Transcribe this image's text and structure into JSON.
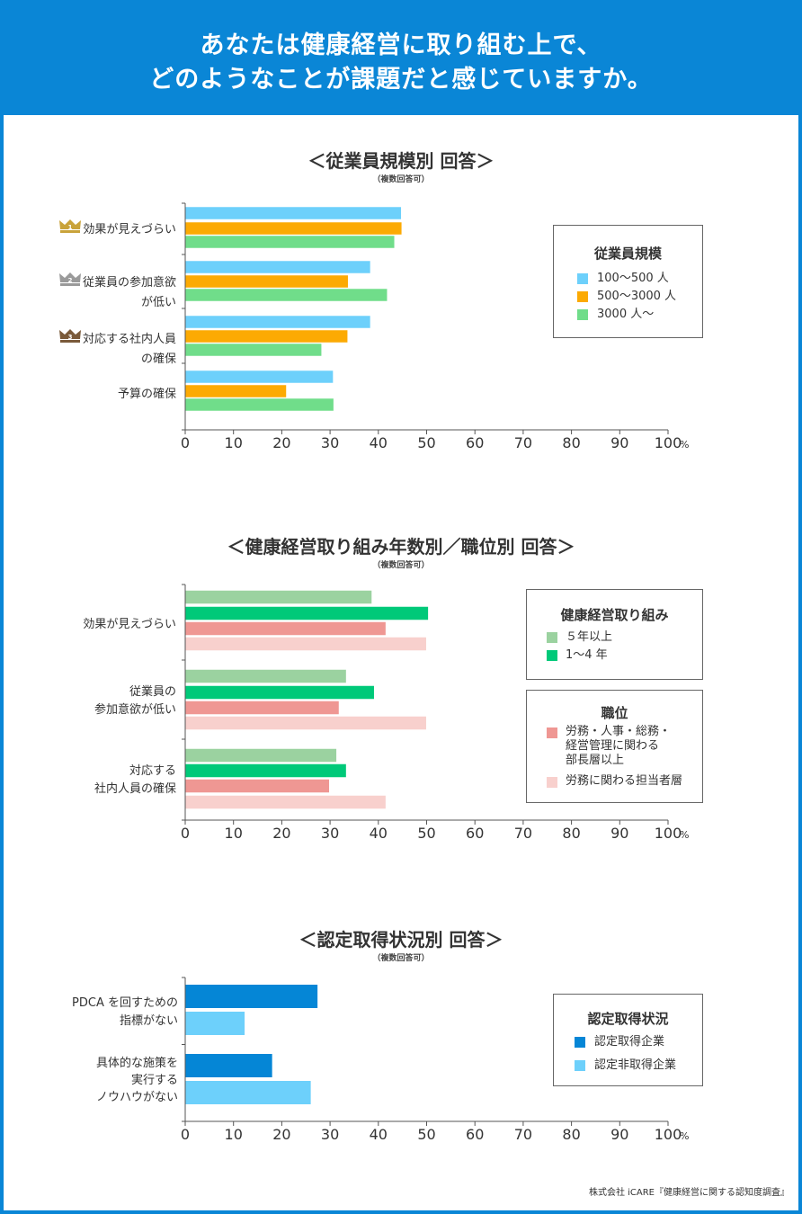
{
  "header": {
    "line1": "あなたは健康経営に取り組む上で、",
    "line2": "どのようなことが課題だと感じていますか。"
  },
  "credit": "株式会社 iCARE『健康経営に関する認知度調査』",
  "chart_data": [
    {
      "type": "bar",
      "orientation": "horizontal",
      "title": "＜従業員規模別 回答＞",
      "subtitle": "（複数回答可）",
      "unit": "%",
      "xlim": [
        0,
        100
      ],
      "xticks": [
        "0",
        "10",
        "20",
        "30",
        "40",
        "50",
        "60",
        "70",
        "80",
        "90",
        "100"
      ],
      "categories": [
        {
          "label": "効果が見えづらい",
          "rank": "1"
        },
        {
          "label": "従業員の参加意欲\nが低い",
          "rank": "2"
        },
        {
          "label": "対応する社内人員\nの確保",
          "rank": "3"
        },
        {
          "label": "予算の確保",
          "rank": ""
        }
      ],
      "legend_title": "従業員規模",
      "series": [
        {
          "name": "100～500 人",
          "color": "#6dd0fb",
          "values": [
            44.7,
            38.3,
            38.3,
            30.6
          ]
        },
        {
          "name": "500～3000 人",
          "color": "#fcaa03",
          "values": [
            44.8,
            33.7,
            33.6,
            20.9
          ]
        },
        {
          "name": "3000 人～",
          "color": "#70dd8a",
          "values": [
            43.3,
            41.8,
            28.2,
            30.7
          ]
        }
      ]
    },
    {
      "type": "bar",
      "orientation": "horizontal",
      "title": "＜健康経営取り組み年数別／職位別 回答＞",
      "subtitle": "（複数回答可）",
      "unit": "%",
      "xlim": [
        0,
        100
      ],
      "xticks": [
        "0",
        "10",
        "20",
        "30",
        "40",
        "50",
        "60",
        "70",
        "80",
        "90",
        "100"
      ],
      "categories": [
        {
          "label": "効果が見えづらい"
        },
        {
          "label": "従業員の\n参加意欲が低い"
        },
        {
          "label": "対応する\n社内人員の確保"
        }
      ],
      "legend_groups": [
        {
          "title": "健康経営取り組み",
          "items": [
            {
              "name": "５年以上",
              "color": "#9bd2a0"
            },
            {
              "name": "1～4 年",
              "color": "#00c979"
            }
          ]
        },
        {
          "title": "職位",
          "items": [
            {
              "name": "労務・人事・総務・\n経営管理に関わる\n部長層以上",
              "color": "#ef9793"
            },
            {
              "name": "労務に関わる担当者層",
              "color": "#f8d0cd"
            }
          ]
        }
      ],
      "series": [
        {
          "name": "５年以上",
          "color": "#9bd2a0",
          "values": [
            38.6,
            33.3,
            31.3
          ]
        },
        {
          "name": "1～4 年",
          "color": "#00c979",
          "values": [
            50.3,
            39.1,
            33.3
          ]
        },
        {
          "name": "労務・人事・総務・経営管理に関わる部長層以上",
          "color": "#ef9793",
          "values": [
            41.5,
            31.8,
            29.8
          ]
        },
        {
          "name": "労務に関わる担当者層",
          "color": "#f8d0cd",
          "values": [
            49.9,
            49.9,
            41.5
          ]
        }
      ]
    },
    {
      "type": "bar",
      "orientation": "horizontal",
      "title": "＜認定取得状況別 回答＞",
      "subtitle": "（複数回答可）",
      "unit": "%",
      "xlim": [
        0,
        100
      ],
      "xticks": [
        "0",
        "10",
        "20",
        "30",
        "40",
        "50",
        "60",
        "70",
        "80",
        "90",
        "100"
      ],
      "categories": [
        {
          "label": "PDCA を回すための\n指標がない"
        },
        {
          "label": "具体的な施策を\n実行する\nノウハウがない"
        }
      ],
      "legend_title": "認定取得状況",
      "series": [
        {
          "name": "認定取得企業",
          "color": "#0586d6",
          "values": [
            27.4,
            18.0
          ]
        },
        {
          "name": "認定非取得企業",
          "color": "#6dd0fb",
          "values": [
            12.3,
            26.0
          ]
        }
      ]
    }
  ]
}
